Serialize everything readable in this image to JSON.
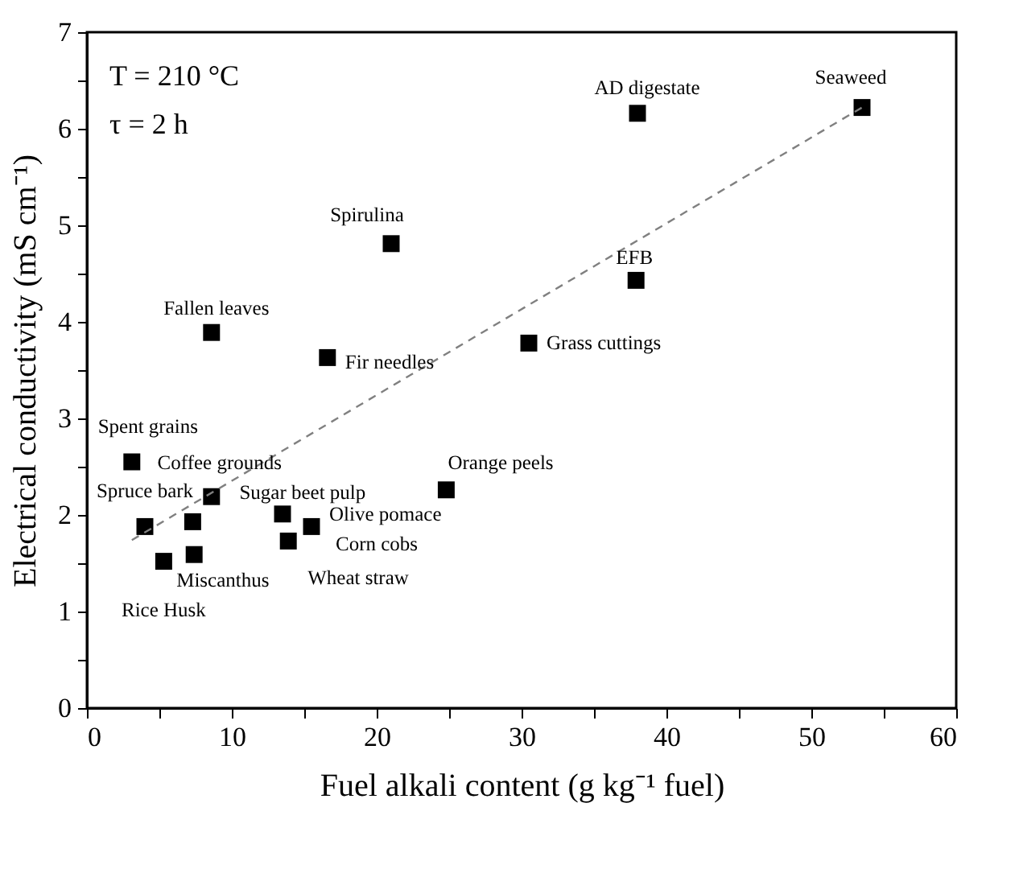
{
  "chart_data": {
    "type": "scatter",
    "xlabel": "Fuel alkali content (g kg⁻¹ fuel)",
    "ylabel": "Electrical conductivity (mS cm⁻¹)",
    "xlim": [
      0,
      60
    ],
    "ylim": [
      0,
      7
    ],
    "xticks": [
      0,
      {
        "value": 5,
        "label": null
      },
      10,
      {
        "value": 15,
        "label": null
      },
      20,
      {
        "value": 25,
        "label": null
      },
      30,
      {
        "value": 35,
        "label": null
      },
      40,
      {
        "value": 45,
        "label": null
      },
      50,
      {
        "value": 55,
        "label": null
      },
      60
    ],
    "yticks": [
      0,
      {
        "value": 0.5,
        "label": null
      },
      1,
      {
        "value": 1.5,
        "label": null
      },
      2,
      {
        "value": 2.5,
        "label": null
      },
      3,
      {
        "value": 3.5,
        "label": null
      },
      4,
      {
        "value": 4.5,
        "label": null
      },
      5,
      {
        "value": 5.5,
        "label": null
      },
      6,
      {
        "value": 6.5,
        "label": null
      },
      7
    ],
    "grid": false,
    "series": [
      {
        "color": "#000000",
        "marker": "square",
        "x": [
          53.5,
          38.0,
          21.0,
          37.9,
          30.5,
          8.6,
          16.6,
          3.1,
          8.6,
          24.8,
          4.0,
          7.3,
          13.5,
          15.5,
          13.9,
          7.4,
          5.3
        ],
        "values": [
          6.22,
          6.16,
          4.81,
          4.43,
          3.78,
          3.89,
          3.63,
          2.55,
          2.19,
          2.26,
          1.88,
          1.93,
          2.01,
          1.88,
          1.73,
          1.59,
          1.52
        ]
      },
      {
        "type": "line",
        "color": "#808080",
        "line_style": "dashed",
        "marker": "none",
        "x": [
          3.1,
          53.5
        ],
        "values": [
          1.74,
          6.22
        ]
      }
    ],
    "annotations": [
      "T = 210 °C",
      "τ = 2 h",
      {
        "text": "Seaweed",
        "x": 53.5,
        "y": 6.22
      },
      {
        "text": "AD digestate",
        "x": 38.0,
        "y": 6.16
      },
      {
        "text": "Spirulina",
        "x": 21.0,
        "y": 4.81
      },
      {
        "text": "EFB",
        "x": 37.9,
        "y": 4.43
      },
      {
        "text": "Grass cuttings",
        "x": 30.5,
        "y": 3.78
      },
      {
        "text": "Fallen leaves",
        "x": 8.6,
        "y": 3.89
      },
      {
        "text": "Fir needles",
        "x": 16.6,
        "y": 3.63
      },
      {
        "text": "Spent grains",
        "x": 3.1,
        "y": 2.55
      },
      {
        "text": "Coffee grounds",
        "x": 8.6,
        "y": 2.19
      },
      {
        "text": "Orange peels",
        "x": 24.8,
        "y": 2.26
      },
      {
        "text": "Spruce bark",
        "x": 4.0,
        "y": 1.88
      },
      {
        "text": "Sugar beet pulp",
        "x": 7.3,
        "y": 1.93
      },
      {
        "text": "Olive pomace",
        "x": 13.5,
        "y": 2.01
      },
      {
        "text": "Corn cobs",
        "x": 15.5,
        "y": 1.88
      },
      {
        "text": "Wheat straw",
        "x": 13.9,
        "y": 1.73
      },
      {
        "text": "Miscanthus",
        "x": 7.4,
        "y": 1.59
      },
      {
        "text": "Rice Husk",
        "x": 5.3,
        "y": 1.52
      }
    ]
  }
}
